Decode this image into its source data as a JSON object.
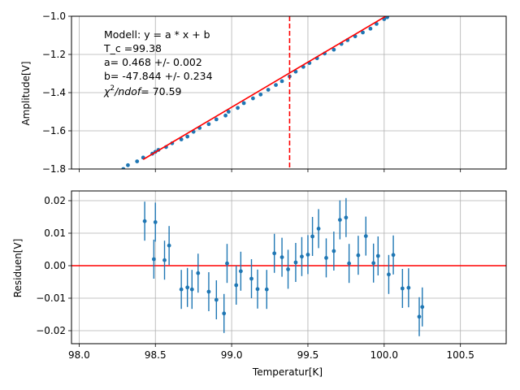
{
  "chart_data": [
    {
      "type": "scatter",
      "title": "",
      "xlabel": "",
      "ylabel": "Amplitude[V]",
      "xlim": [
        97.95,
        100.8
      ],
      "ylim": [
        -1.8,
        -1.0
      ],
      "xticks": [
        98.0,
        98.5,
        99.0,
        99.5,
        100.0,
        100.5
      ],
      "yticks": [
        -1.8,
        -1.6,
        -1.4,
        -1.2,
        -1.0
      ],
      "ytick_labels": [
        "−1.8",
        "−1.6",
        "−1.4",
        "−1.2",
        "−1.0"
      ],
      "grid": true,
      "series": [
        {
          "kind": "points",
          "color": "#1f77b4",
          "x": [
            98.25,
            98.29,
            98.32,
            98.38,
            98.42,
            98.48,
            98.5,
            98.52,
            98.57,
            98.61,
            98.67,
            98.71,
            98.75,
            98.79,
            98.85,
            98.9,
            98.96,
            98.98,
            99.04,
            99.08,
            99.14,
            99.19,
            99.24,
            99.29,
            99.33,
            99.38,
            99.42,
            99.47,
            99.51,
            99.56,
            99.61,
            99.67,
            99.72,
            99.76,
            99.81,
            99.86,
            99.91,
            99.95,
            100.0,
            100.02
          ],
          "y": [
            -1.82,
            -1.8,
            -1.78,
            -1.76,
            -1.74,
            -1.72,
            -1.71,
            -1.7,
            -1.685,
            -1.665,
            -1.645,
            -1.63,
            -1.605,
            -1.585,
            -1.565,
            -1.54,
            -1.52,
            -1.5,
            -1.48,
            -1.455,
            -1.43,
            -1.41,
            -1.385,
            -1.36,
            -1.34,
            -1.315,
            -1.29,
            -1.265,
            -1.245,
            -1.22,
            -1.195,
            -1.175,
            -1.145,
            -1.125,
            -1.105,
            -1.085,
            -1.065,
            -1.04,
            -1.015,
            -1.005
          ]
        },
        {
          "kind": "line",
          "color": "#ff0000",
          "x": [
            98.42,
            100.01
          ],
          "y": [
            -1.75,
            -1.0
          ]
        }
      ],
      "vline": {
        "x": 99.38,
        "color": "#ff0000",
        "style": "dashed"
      },
      "annotation": {
        "line1": "Modell: y = a * x + b",
        "line2": "T_c =99.38",
        "line3": "a= 0.468 +/- 0.002",
        "line4": "b= -47.844 +/- 0.234",
        "chi": "χ",
        "chi_sup": "2",
        "ndof": "/ndof",
        "chi_value": "= 70.59"
      }
    },
    {
      "type": "scatter",
      "title": "",
      "xlabel": "Temperatur[K]",
      "ylabel": "Residuen[V]",
      "xlim": [
        97.95,
        100.8
      ],
      "ylim": [
        -0.024,
        0.023
      ],
      "xticks": [
        98.0,
        98.5,
        99.0,
        99.5,
        100.0,
        100.5
      ],
      "xtick_labels": [
        "98.0",
        "98.5",
        "99.0",
        "99.5",
        "100.0",
        "100.5"
      ],
      "yticks": [
        -0.02,
        -0.01,
        0.0,
        0.01,
        0.02
      ],
      "ytick_labels": [
        "−0.02",
        "−0.01",
        "0.00",
        "0.01",
        "0.02"
      ],
      "grid": true,
      "hline": {
        "y": 0.0,
        "color": "#ff0000"
      },
      "series": [
        {
          "kind": "errorbar",
          "color": "#1f77b4",
          "err": 0.006,
          "x": [
            98.43,
            98.49,
            98.5,
            98.56,
            98.59,
            98.67,
            98.71,
            98.74,
            98.78,
            98.85,
            98.9,
            98.95,
            98.97,
            99.03,
            99.06,
            99.13,
            99.17,
            99.23,
            99.28,
            99.33,
            99.37,
            99.42,
            99.46,
            99.5,
            99.53,
            99.57,
            99.62,
            99.67,
            99.71,
            99.75,
            99.77,
            99.83,
            99.88,
            99.93,
            99.96,
            100.03,
            100.06,
            100.12,
            100.16,
            100.23,
            100.25
          ],
          "y": [
            0.0137,
            0.002,
            0.0134,
            0.0017,
            0.0062,
            -0.0073,
            -0.0067,
            -0.0073,
            -0.0023,
            -0.008,
            -0.0105,
            -0.0147,
            0.0007,
            -0.006,
            -0.0017,
            -0.004,
            -0.0072,
            -0.0073,
            0.0038,
            0.0026,
            -0.0011,
            0.001,
            0.0028,
            0.0034,
            0.009,
            0.0114,
            0.0024,
            0.0045,
            0.0141,
            0.0148,
            0.0007,
            0.0032,
            0.0091,
            0.0008,
            0.003,
            -0.0027,
            0.0033,
            -0.007,
            -0.0068,
            -0.0157,
            -0.0127
          ]
        }
      ]
    }
  ]
}
